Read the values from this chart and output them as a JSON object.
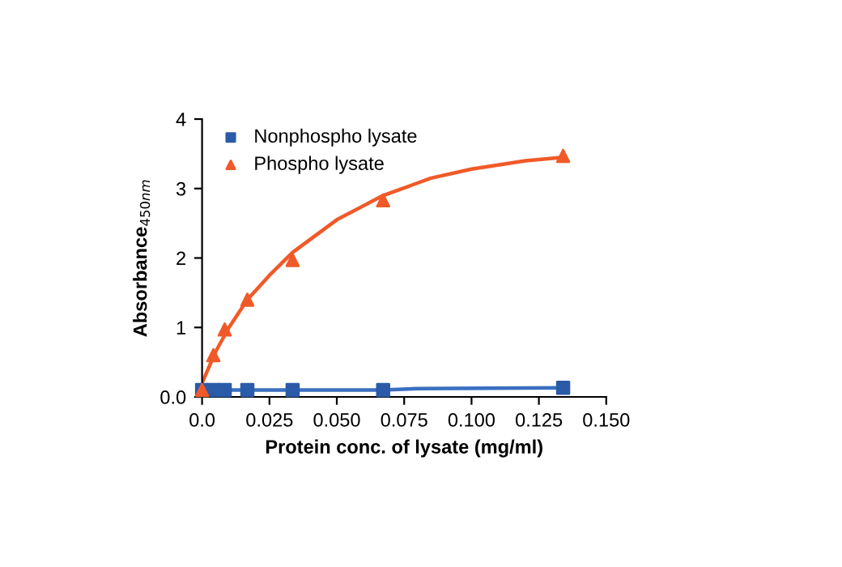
{
  "chart_data": {
    "type": "scatter",
    "xlabel": "Protein conc. of lysate (mg/ml)",
    "ylabel": "Absorbance$_{450nm}$",
    "x": [
      0,
      0.0042,
      0.0084,
      0.0168,
      0.0336,
      0.0672,
      0.134
    ],
    "series": [
      {
        "name": "Nonphospho lysate",
        "color": "#2b5ba8",
        "marker": "square",
        "values": [
          0.1,
          0.1,
          0.1,
          0.1,
          0.1,
          0.1,
          0.13
        ]
      },
      {
        "name": "Phospho lysate",
        "color": "#f05a28",
        "marker": "triangle",
        "values": [
          0.1,
          0.6,
          0.97,
          1.4,
          1.97,
          2.83,
          3.47
        ]
      },
      {
        "type": "line",
        "color": "#3a6fc0",
        "marker": "none",
        "x": [
          0,
          0.034,
          0.067,
          0.08,
          0.134
        ],
        "values": [
          0.1,
          0.1,
          0.1,
          0.12,
          0.13
        ]
      },
      {
        "type": "line",
        "color": "#f05a28",
        "marker": "none",
        "x": [
          0,
          0.005,
          0.01,
          0.0168,
          0.025,
          0.0336,
          0.05,
          0.0672,
          0.085,
          0.1,
          0.12,
          0.134
        ],
        "values": [
          0.2,
          0.65,
          1.0,
          1.4,
          1.75,
          2.08,
          2.55,
          2.9,
          3.15,
          3.28,
          3.4,
          3.45
        ]
      }
    ],
    "xlim": [
      0,
      0.15
    ],
    "xticks": [
      {
        "value": 0,
        "label": "0.0"
      },
      0.025,
      {
        "value": 0.05,
        "label": "0.050"
      },
      0.075,
      {
        "value": 0.1,
        "label": "0.100"
      },
      0.125,
      {
        "value": 0.15,
        "label": "0.150"
      }
    ],
    "ylim": [
      0,
      4
    ],
    "yticks": [
      {
        "value": 0,
        "label": "0.0"
      },
      1,
      2,
      3,
      4
    ],
    "grid": false,
    "legend": "top left"
  }
}
